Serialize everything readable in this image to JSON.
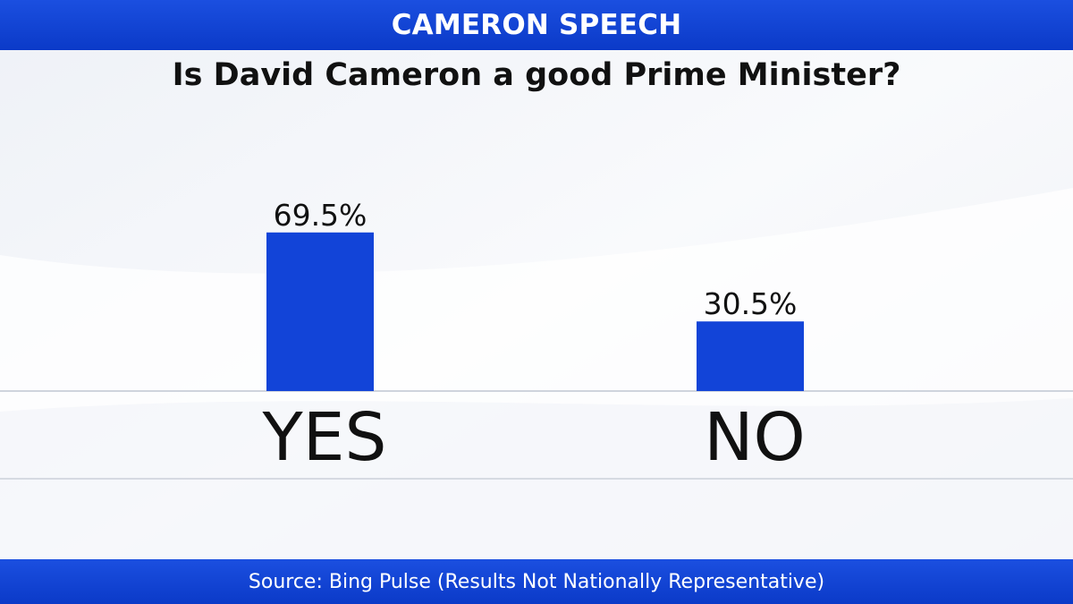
{
  "header": {
    "title": "CAMERON SPEECH"
  },
  "chart_data": {
    "type": "bar",
    "title": "Is David Cameron a good Prime Minister?",
    "categories": [
      "YES",
      "NO"
    ],
    "values": [
      69.5,
      30.5
    ],
    "value_labels": [
      "69.5%",
      "30.5%"
    ],
    "ylim": [
      0,
      100
    ],
    "grid": false,
    "bar_color": "#1244d8"
  },
  "footer": {
    "source": "Source: Bing Pulse (Results Not Nationally Representative)"
  }
}
